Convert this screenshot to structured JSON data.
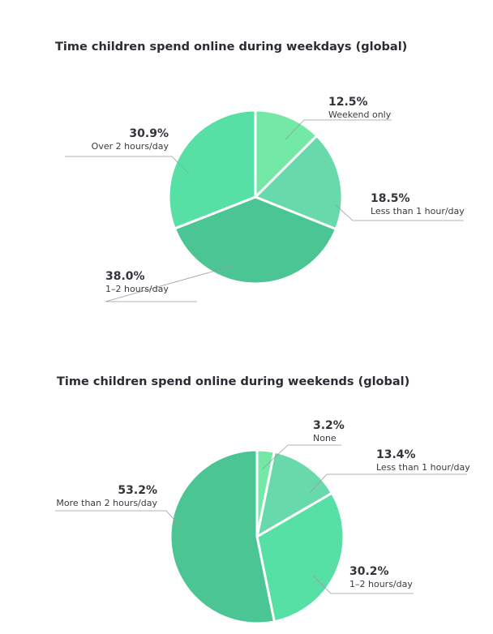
{
  "chart_data": [
    {
      "type": "pie",
      "title": "Time children spend online during weekdays (global)",
      "slices": [
        {
          "label": "Weekend only",
          "value": 12.5,
          "value_label": "12.5%",
          "color": "#74e8a5"
        },
        {
          "label": "Less than 1 hour/day",
          "value": 18.5,
          "value_label": "18.5%",
          "color": "#68d9aa"
        },
        {
          "label": "1–2 hours/day",
          "value": 38.0,
          "value_label": "38.0%",
          "color": "#4cc594"
        },
        {
          "label": "Over 2 hours/day",
          "value": 30.9,
          "value_label": "30.9%",
          "color": "#57e0a5"
        }
      ]
    },
    {
      "type": "pie",
      "title": "Time children spend online during weekends (global)",
      "slices": [
        {
          "label": "None",
          "value": 3.2,
          "value_label": "3.2%",
          "color": "#74e8a5"
        },
        {
          "label": "Less than 1 hour/day",
          "value": 13.4,
          "value_label": "13.4%",
          "color": "#68d9aa"
        },
        {
          "label": "1–2 hours/day",
          "value": 30.2,
          "value_label": "30.2%",
          "color": "#57e0a5"
        },
        {
          "label": "More than 2 hours/day",
          "value": 53.2,
          "value_label": "53.2%",
          "color": "#4cc594"
        }
      ]
    }
  ]
}
